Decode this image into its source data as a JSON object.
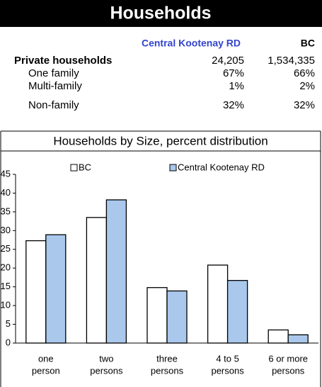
{
  "header": {
    "title": "Households"
  },
  "table": {
    "columns": [
      "Central Kootenay RD",
      "BC"
    ],
    "rows": [
      [
        "Private households",
        "24,205",
        "1,534,335"
      ],
      [
        "One family",
        "67%",
        "66%"
      ],
      [
        "Multi-family",
        "1%",
        "2%"
      ],
      [
        "Non-family",
        "32%",
        "32%"
      ]
    ]
  },
  "chart_data": {
    "type": "bar",
    "title": "Households by Size, percent distribution",
    "categories": [
      [
        "one",
        "person"
      ],
      [
        "two",
        "persons"
      ],
      [
        "three",
        "persons"
      ],
      [
        "4 to 5",
        "persons"
      ],
      [
        "6 or  more",
        "persons"
      ]
    ],
    "series": [
      {
        "name": "BC",
        "color": "#ffffff",
        "values": [
          27.3,
          33.5,
          14.8,
          20.8,
          3.5
        ]
      },
      {
        "name": "Central Kootenay RD",
        "color": "#a9c8ec",
        "values": [
          28.9,
          38.2,
          13.9,
          16.7,
          2.2
        ]
      }
    ],
    "ylim": [
      0,
      45
    ],
    "yticks": [
      0,
      5,
      10,
      15,
      20,
      25,
      30,
      35,
      40,
      45
    ],
    "grid": false
  }
}
